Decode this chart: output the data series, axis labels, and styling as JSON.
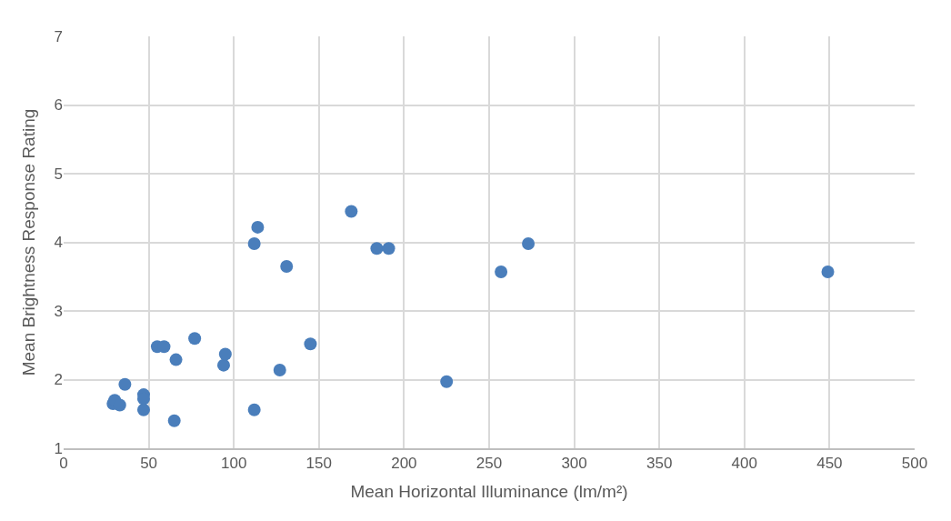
{
  "chart_data": {
    "type": "scatter",
    "xlabel": "Mean Horizontal Illuminance (lm/m²)",
    "ylabel": "Mean Brightness Response Rating",
    "x": [
      29,
      30,
      33,
      36,
      47,
      47,
      47,
      65,
      55,
      59,
      66,
      77,
      94,
      95,
      112,
      112,
      114,
      131,
      127,
      145,
      169,
      184,
      191,
      225,
      257,
      273,
      449
    ],
    "series": [
      {
        "color": "#4a7ebb",
        "values": [
          1.65,
          1.7,
          1.63,
          1.93,
          1.78,
          1.72,
          1.56,
          1.4,
          2.48,
          2.48,
          2.29,
          2.6,
          2.21,
          2.37,
          1.56,
          3.98,
          4.22,
          3.65,
          2.14,
          2.52,
          4.45,
          3.91,
          3.91,
          1.97,
          3.57,
          3.98,
          3.57
        ]
      }
    ],
    "xlim": [
      0,
      500
    ],
    "xticks": [
      0,
      50,
      100,
      150,
      200,
      250,
      300,
      350,
      400,
      450,
      500
    ],
    "ylim": [
      1,
      7
    ],
    "yticks": [
      1,
      2,
      3,
      4,
      5,
      6,
      7
    ],
    "grid": true,
    "marker": "circle",
    "legend": false
  }
}
